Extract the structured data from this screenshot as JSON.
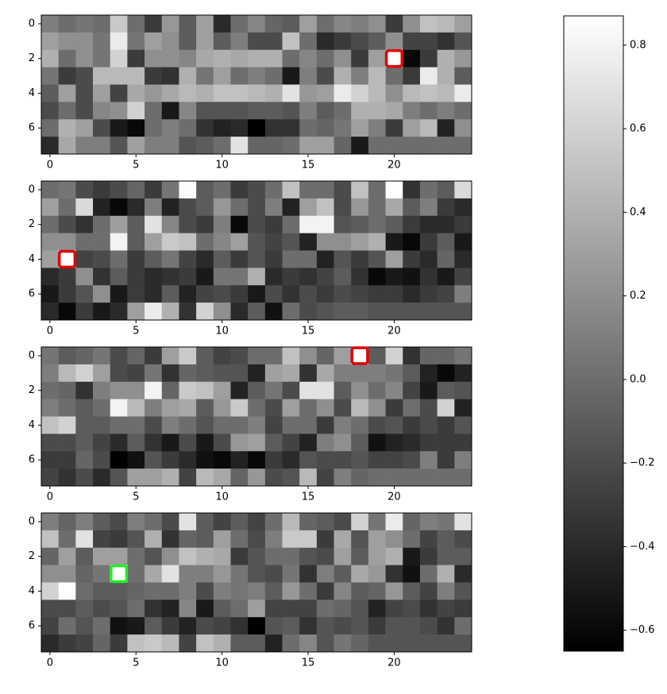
{
  "chart_data": [
    {
      "type": "heatmap",
      "xlim": [
        -0.5,
        24.5
      ],
      "ylim": [
        7.5,
        -0.5
      ],
      "xticks": [
        0,
        5,
        10,
        15,
        20
      ],
      "yticks": [
        0,
        2,
        4,
        6
      ],
      "highlight": {
        "row": 2,
        "col": 20,
        "color": "#e00000"
      },
      "values": [
        [
          0.1,
          0.0,
          0.05,
          0.0,
          0.55,
          0.0,
          -0.3,
          0.25,
          -0.1,
          0.3,
          -0.4,
          0.0,
          0.15,
          -0.05,
          -0.1,
          0.3,
          0.0,
          0.15,
          0.1,
          0.2,
          -0.3,
          0.2,
          0.5,
          0.45,
          0.3
        ],
        [
          0.3,
          0.2,
          0.2,
          0.05,
          0.75,
          0.05,
          0.3,
          0.2,
          -0.1,
          0.3,
          -0.1,
          0.1,
          -0.2,
          -0.2,
          0.5,
          0.0,
          -0.4,
          -0.3,
          -0.2,
          -0.1,
          0.2,
          -0.25,
          -0.25,
          -0.35,
          -0.15
        ],
        [
          0.4,
          0.0,
          0.2,
          0.05,
          0.6,
          -0.3,
          0.2,
          0.2,
          0.15,
          0.35,
          0.4,
          0.35,
          0.4,
          0.4,
          0.0,
          0.15,
          0.0,
          0.2,
          -0.3,
          0.3,
          0.87,
          -0.6,
          -0.3,
          0.4,
          0.25
        ],
        [
          0.05,
          -0.3,
          -0.2,
          0.45,
          0.45,
          0.45,
          -0.3,
          -0.35,
          0.4,
          0.05,
          0.3,
          0.0,
          0.1,
          0.0,
          -0.5,
          0.1,
          -0.2,
          0.4,
          0.1,
          0.45,
          0.0,
          -0.3,
          0.75,
          0.4,
          -0.1
        ],
        [
          -0.1,
          0.3,
          -0.2,
          0.3,
          -0.25,
          0.35,
          0.25,
          0.35,
          0.45,
          0.4,
          0.5,
          0.5,
          0.45,
          0.4,
          0.7,
          0.25,
          0.3,
          0.75,
          0.6,
          0.45,
          0.2,
          0.45,
          0.5,
          0.45,
          0.75
        ],
        [
          -0.2,
          0.0,
          -0.2,
          0.15,
          0.2,
          0.6,
          0.0,
          -0.5,
          0.15,
          -0.15,
          -0.15,
          -0.15,
          -0.1,
          -0.1,
          -0.15,
          0.1,
          -0.1,
          0.0,
          0.4,
          0.4,
          0.35,
          0.1,
          0.0,
          0.1,
          0.0
        ],
        [
          0.0,
          0.4,
          0.3,
          -0.2,
          -0.5,
          -0.6,
          0.0,
          0.1,
          0.0,
          -0.35,
          -0.45,
          -0.4,
          -0.65,
          -0.35,
          -0.35,
          0.0,
          -0.05,
          0.05,
          0.3,
          0.1,
          -0.3,
          0.3,
          0.45,
          -0.45,
          0.2
        ],
        [
          -0.4,
          0.35,
          0.1,
          0.1,
          -0.15,
          0.3,
          0.1,
          0.1,
          -0.15,
          -0.1,
          0.0,
          0.7,
          -0.05,
          -0.05,
          0.0,
          0.3,
          0.3,
          -0.05,
          -0.5,
          0.0,
          0.0,
          0.0,
          0.0,
          0.0,
          0.0
        ]
      ]
    },
    {
      "type": "heatmap",
      "xlim": [
        -0.5,
        24.5
      ],
      "ylim": [
        7.5,
        -0.5
      ],
      "xticks": [
        0,
        5,
        10,
        15,
        20
      ],
      "yticks": [
        0,
        2,
        4,
        6
      ],
      "highlight": {
        "row": 4,
        "col": 1,
        "color": "#e00000"
      },
      "values": [
        [
          0.0,
          0.05,
          -0.2,
          -0.3,
          -0.2,
          -0.05,
          -0.3,
          0.05,
          0.85,
          -0.1,
          0.0,
          -0.3,
          -0.2,
          0.0,
          0.5,
          0.0,
          0.0,
          -0.2,
          0.5,
          0.0,
          0.87,
          -0.35,
          0.0,
          -0.1,
          0.65
        ],
        [
          0.3,
          0.0,
          0.65,
          -0.45,
          -0.6,
          -0.4,
          0.1,
          -0.45,
          -0.2,
          -0.1,
          0.25,
          0.0,
          -0.2,
          0.1,
          -0.45,
          0.3,
          0.5,
          -0.2,
          0.25,
          0.0,
          0.35,
          -0.1,
          0.1,
          -0.3,
          -0.4
        ],
        [
          0.0,
          -0.2,
          -0.35,
          0.0,
          0.3,
          -0.1,
          0.7,
          0.15,
          -0.2,
          -0.3,
          0.1,
          -0.6,
          -0.2,
          -0.3,
          0.0,
          0.8,
          0.8,
          -0.15,
          -0.1,
          0.0,
          -0.1,
          -0.3,
          -0.4,
          -0.4,
          -0.3
        ],
        [
          0.2,
          0.2,
          0.0,
          0.0,
          0.8,
          -0.1,
          0.3,
          0.55,
          0.5,
          0.0,
          0.15,
          0.3,
          -0.15,
          -0.25,
          -0.15,
          -0.45,
          0.2,
          0.2,
          0.3,
          0.4,
          -0.5,
          -0.6,
          -0.3,
          -0.1,
          -0.5
        ],
        [
          0.3,
          0.87,
          -0.25,
          -0.2,
          0.0,
          -0.3,
          -0.1,
          0.05,
          -0.25,
          -0.4,
          -0.1,
          -0.3,
          -0.15,
          -0.3,
          0.0,
          0.0,
          -0.45,
          -0.15,
          -0.3,
          -0.15,
          0.3,
          -0.3,
          -0.4,
          -0.05,
          -0.4
        ],
        [
          -0.4,
          -0.3,
          0.2,
          -0.35,
          -0.1,
          -0.3,
          -0.4,
          -0.35,
          -0.3,
          -0.5,
          0.05,
          0.05,
          0.4,
          -0.4,
          -0.3,
          -0.35,
          -0.25,
          -0.1,
          -0.35,
          -0.6,
          -0.5,
          -0.55,
          -0.35,
          -0.5,
          -0.25
        ],
        [
          -0.5,
          -0.3,
          -0.15,
          0.2,
          -0.5,
          -0.3,
          -0.4,
          -0.1,
          -0.45,
          -0.25,
          -0.2,
          -0.3,
          -0.5,
          -0.2,
          -0.35,
          -0.2,
          -0.3,
          -0.2,
          -0.25,
          -0.3,
          -0.3,
          -0.4,
          -0.3,
          -0.25,
          0.1
        ],
        [
          -0.4,
          -0.6,
          -0.3,
          -0.5,
          -0.4,
          0.3,
          0.75,
          0.4,
          -0.35,
          0.6,
          0.2,
          -0.4,
          -0.1,
          -0.55,
          0.0,
          -0.2,
          -0.15,
          -0.1,
          -0.1,
          -0.15,
          -0.15,
          -0.15,
          -0.15,
          -0.15,
          -0.15
        ]
      ]
    },
    {
      "type": "heatmap",
      "xlim": [
        -0.5,
        24.5
      ],
      "ylim": [
        7.5,
        -0.5
      ],
      "xticks": [
        0,
        5,
        10,
        15,
        20
      ],
      "yticks": [
        0,
        2,
        4,
        6
      ],
      "highlight": {
        "row": 0,
        "col": 18,
        "color": "#e00000"
      },
      "values": [
        [
          0.05,
          -0.1,
          -0.05,
          0.05,
          -0.2,
          -0.05,
          -0.3,
          0.3,
          0.55,
          -0.1,
          -0.25,
          -0.2,
          0.0,
          0.0,
          0.5,
          0.2,
          -0.05,
          0.3,
          0.87,
          -0.1,
          0.6,
          -0.35,
          -0.05,
          -0.05,
          0.05
        ],
        [
          0.1,
          0.45,
          0.6,
          0.3,
          -0.2,
          -0.25,
          0.05,
          -0.35,
          -0.05,
          -0.1,
          -0.15,
          -0.15,
          -0.45,
          0.3,
          0.35,
          -0.35,
          0.35,
          0.1,
          0.1,
          0.1,
          0.05,
          -0.1,
          -0.45,
          -0.6,
          -0.45
        ],
        [
          0.0,
          -0.05,
          -0.35,
          0.1,
          0.2,
          0.2,
          0.8,
          -0.05,
          0.55,
          0.5,
          0.3,
          -0.45,
          -0.1,
          0.05,
          -0.2,
          0.7,
          0.7,
          -0.1,
          0.2,
          0.0,
          0.15,
          -0.25,
          -0.5,
          -0.1,
          -0.15
        ],
        [
          0.1,
          0.0,
          -0.1,
          0.0,
          0.8,
          0.45,
          0.1,
          0.3,
          0.35,
          -0.1,
          0.25,
          0.55,
          0.0,
          -0.2,
          0.3,
          0.0,
          0.2,
          -0.2,
          0.45,
          0.2,
          -0.3,
          0.0,
          -0.2,
          0.6,
          -0.45
        ],
        [
          0.5,
          0.6,
          -0.1,
          -0.1,
          0.0,
          0.0,
          -0.2,
          0.1,
          0.0,
          -0.15,
          0.0,
          0.0,
          0.1,
          -0.25,
          0.0,
          0.0,
          -0.3,
          0.1,
          0.0,
          -0.2,
          -0.15,
          -0.3,
          -0.2,
          -0.3,
          -0.15
        ],
        [
          -0.2,
          -0.2,
          -0.1,
          -0.25,
          -0.4,
          -0.1,
          -0.35,
          -0.5,
          -0.2,
          -0.5,
          -0.2,
          0.25,
          0.3,
          -0.1,
          -0.25,
          -0.45,
          0.1,
          0.2,
          -0.1,
          -0.55,
          -0.45,
          -0.4,
          -0.3,
          -0.3,
          -0.3
        ],
        [
          -0.3,
          -0.3,
          -0.05,
          -0.2,
          -0.65,
          -0.55,
          -0.15,
          -0.3,
          -0.4,
          -0.55,
          -0.6,
          -0.45,
          -0.6,
          -0.3,
          -0.4,
          -0.15,
          -0.2,
          -0.2,
          -0.15,
          -0.25,
          -0.25,
          -0.2,
          0.1,
          -0.3,
          0.1
        ],
        [
          -0.25,
          -0.35,
          -0.2,
          -0.4,
          -0.15,
          0.3,
          0.3,
          0.4,
          -0.25,
          0.45,
          0.35,
          -0.05,
          0.25,
          -0.2,
          -0.15,
          0.45,
          -0.25,
          0.1,
          -0.05,
          0.0,
          0.0,
          0.0,
          0.0,
          0.0,
          0.0
        ]
      ]
    },
    {
      "type": "heatmap",
      "xlim": [
        -0.5,
        24.5
      ],
      "ylim": [
        7.5,
        -0.5
      ],
      "xticks": [
        0,
        5,
        10,
        15,
        20
      ],
      "yticks": [
        0,
        2,
        4,
        6
      ],
      "highlight": {
        "row": 3,
        "col": 4,
        "color": "#22ee22"
      },
      "values": [
        [
          0.1,
          -0.05,
          0.1,
          -0.1,
          -0.2,
          0.1,
          0.0,
          -0.2,
          0.7,
          -0.1,
          -0.25,
          -0.1,
          -0.25,
          0.0,
          0.45,
          -0.05,
          -0.1,
          -0.2,
          0.6,
          0.05,
          0.75,
          -0.05,
          0.1,
          0.05,
          0.7
        ],
        [
          0.5,
          0.0,
          0.7,
          -0.25,
          -0.3,
          -0.15,
          0.4,
          -0.35,
          -0.05,
          -0.1,
          0.3,
          0.0,
          -0.2,
          0.1,
          0.55,
          0.55,
          -0.3,
          0.35,
          -0.15,
          0.3,
          0.2,
          0.0,
          -0.25,
          -0.1,
          -0.2
        ],
        [
          -0.05,
          0.3,
          -0.1,
          0.3,
          0.3,
          0.0,
          -0.15,
          0.2,
          0.5,
          0.4,
          0.35,
          -0.3,
          -0.15,
          0.0,
          0.0,
          -0.15,
          -0.2,
          0.3,
          -0.1,
          0.3,
          0.4,
          -0.5,
          -0.3,
          -0.1,
          -0.1
        ],
        [
          0.2,
          0.2,
          -0.05,
          0.05,
          0.87,
          0.0,
          0.35,
          0.7,
          0.1,
          0.1,
          0.25,
          0.05,
          -0.15,
          -0.2,
          0.05,
          -0.35,
          0.1,
          -0.1,
          0.35,
          0.25,
          -0.35,
          -0.55,
          0.0,
          0.4,
          -0.4
        ],
        [
          0.6,
          0.87,
          0.0,
          -0.1,
          -0.1,
          -0.05,
          0.0,
          0.0,
          0.1,
          -0.2,
          0.1,
          0.05,
          0.1,
          -0.1,
          0.25,
          0.0,
          -0.3,
          0.15,
          -0.1,
          -0.05,
          0.25,
          -0.1,
          -0.25,
          0.1,
          -0.15
        ],
        [
          -0.2,
          -0.2,
          -0.1,
          -0.2,
          -0.15,
          0.0,
          -0.35,
          -0.45,
          0.15,
          -0.5,
          -0.1,
          0.0,
          0.3,
          -0.25,
          -0.25,
          -0.25,
          0.0,
          -0.05,
          -0.15,
          -0.45,
          -0.25,
          -0.2,
          -0.35,
          -0.25,
          -0.3
        ],
        [
          -0.25,
          0.0,
          -0.15,
          0.0,
          -0.55,
          -0.5,
          -0.1,
          -0.3,
          -0.45,
          -0.2,
          -0.25,
          -0.35,
          -0.65,
          -0.15,
          -0.1,
          -0.35,
          -0.15,
          -0.2,
          -0.15,
          -0.3,
          -0.15,
          -0.15,
          -0.2,
          -0.35,
          0.0
        ],
        [
          -0.4,
          -0.3,
          -0.25,
          -0.05,
          -0.3,
          0.5,
          0.55,
          0.45,
          -0.25,
          0.5,
          0.4,
          -0.1,
          -0.1,
          -0.45,
          0.0,
          0.15,
          -0.15,
          0.05,
          -0.05,
          -0.15,
          -0.15,
          -0.15,
          -0.15,
          -0.15,
          -0.15
        ]
      ]
    }
  ],
  "colorbar": {
    "colormap": "gray",
    "lim": [
      -0.65,
      0.87
    ],
    "ticks": [
      {
        "value": -0.6,
        "label": "−0.6"
      },
      {
        "value": -0.4,
        "label": "−0.4"
      },
      {
        "value": -0.2,
        "label": "−0.2"
      },
      {
        "value": 0,
        "label": "0.0"
      },
      0.2,
      0.4,
      0.6,
      0.8
    ]
  }
}
